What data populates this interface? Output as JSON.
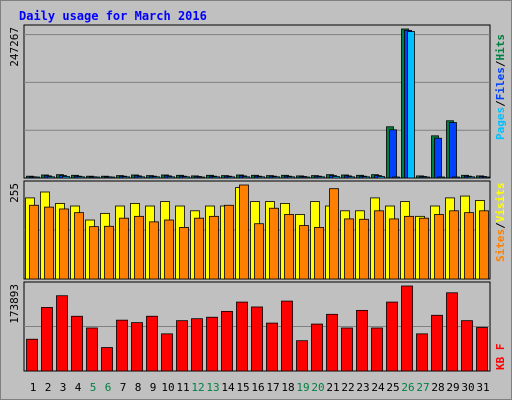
{
  "title": "Daily usage for March 2016",
  "colors": {
    "background": "#c0c0c0",
    "panel": "#c0c0c0",
    "grid": "#808080",
    "title": "#0000ff",
    "hits": "#008040",
    "files": "#0040ff",
    "pages": "#00c0ff",
    "visits": "#ffff00",
    "sites": "#ff8000",
    "kbf": "#ff0000",
    "weekend_label": "#008040",
    "weekday_label": "#000000"
  },
  "side_labels": {
    "hits": "Hits",
    "files": "Files",
    "pages": "Pages",
    "visits": "Visits",
    "sites": "Sites",
    "kbf": "KB F",
    "sep": "/"
  },
  "chart_data": [
    {
      "type": "bar",
      "name": "hits-files-pages",
      "categories": [
        "1",
        "2",
        "3",
        "4",
        "5",
        "6",
        "7",
        "8",
        "9",
        "10",
        "11",
        "12",
        "13",
        "14",
        "15",
        "16",
        "17",
        "18",
        "19",
        "20",
        "21",
        "22",
        "23",
        "24",
        "25",
        "26",
        "27",
        "28",
        "29",
        "30",
        "31"
      ],
      "ymax_label": "247267",
      "ylim": [
        0,
        247267
      ],
      "series": [
        {
          "name": "Hits",
          "values": [
            3000,
            5000,
            5500,
            4500,
            3000,
            3000,
            4000,
            5000,
            4000,
            5000,
            4500,
            3500,
            4500,
            4000,
            5000,
            4500,
            4000,
            4500,
            3500,
            4000,
            5500,
            5000,
            4500,
            5500,
            85000,
            247267,
            3500,
            70000,
            95000,
            4500,
            3500
          ]
        },
        {
          "name": "Files",
          "values": [
            2000,
            3500,
            4000,
            3000,
            2000,
            2000,
            3000,
            3500,
            3000,
            3500,
            3000,
            2500,
            3000,
            3000,
            3500,
            3000,
            3000,
            3000,
            2500,
            3000,
            4000,
            3500,
            3000,
            4000,
            80000,
            245000,
            2500,
            66000,
            92000,
            3000,
            2500
          ]
        },
        {
          "name": "Pages",
          "values": [
            1000,
            2000,
            2500,
            2000,
            1500,
            1000,
            2000,
            2000,
            2000,
            2000,
            2000,
            1500,
            2000,
            2000,
            2000,
            2000,
            2000,
            2000,
            1500,
            2000,
            2500,
            2000,
            2000,
            2500,
            800,
            243000,
            1500,
            900,
            1200,
            2000,
            1500
          ]
        }
      ],
      "weekend_days": [
        "5",
        "6",
        "12",
        "13",
        "19",
        "20",
        "26",
        "27"
      ]
    },
    {
      "type": "bar",
      "name": "visits-sites",
      "categories": [
        "1",
        "2",
        "3",
        "4",
        "5",
        "6",
        "7",
        "8",
        "9",
        "10",
        "11",
        "12",
        "13",
        "14",
        "15",
        "16",
        "17",
        "18",
        "19",
        "20",
        "21",
        "22",
        "23",
        "24",
        "25",
        "26",
        "27",
        "28",
        "29",
        "30",
        "31"
      ],
      "ymax_label": "255",
      "ylim": [
        0,
        255
      ],
      "series": [
        {
          "name": "Visits",
          "values": [
            220,
            236,
            205,
            198,
            160,
            178,
            198,
            205,
            198,
            210,
            198,
            185,
            198,
            198,
            248,
            210,
            210,
            205,
            175,
            210,
            198,
            185,
            185,
            220,
            198,
            210,
            170,
            198,
            220,
            225,
            213
          ]
        },
        {
          "name": "Sites",
          "values": [
            200,
            195,
            190,
            180,
            142,
            143,
            165,
            170,
            155,
            160,
            140,
            165,
            170,
            200,
            255,
            150,
            192,
            175,
            145,
            140,
            245,
            163,
            162,
            185,
            163,
            170,
            165,
            175,
            185,
            180,
            185
          ]
        }
      ]
    },
    {
      "type": "bar",
      "name": "kbf",
      "categories": [
        "1",
        "2",
        "3",
        "4",
        "5",
        "6",
        "7",
        "8",
        "9",
        "10",
        "11",
        "12",
        "13",
        "14",
        "15",
        "16",
        "17",
        "18",
        "19",
        "20",
        "21",
        "22",
        "23",
        "24",
        "25",
        "26",
        "27",
        "28",
        "29",
        "30",
        "31"
      ],
      "ymax_label": "173893",
      "ylim": [
        0,
        173893
      ],
      "series": [
        {
          "name": "KB F",
          "values": [
            65000,
            130000,
            154000,
            112000,
            88000,
            48000,
            104000,
            99000,
            112000,
            76000,
            103000,
            107000,
            110000,
            122000,
            141000,
            131000,
            98000,
            143000,
            62000,
            96000,
            116000,
            88000,
            124000,
            88000,
            141000,
            173893,
            76000,
            114000,
            160000,
            103000,
            89000
          ]
        }
      ]
    }
  ]
}
